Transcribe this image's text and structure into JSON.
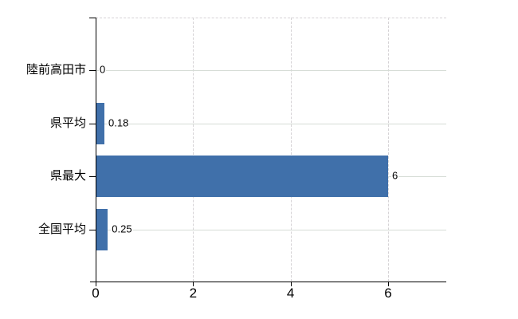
{
  "chart_data": {
    "type": "bar",
    "orientation": "horizontal",
    "title": "",
    "xlabel": "",
    "ylabel": "",
    "categories": [
      "陸前高田市",
      "県平均",
      "県最大",
      "全国平均"
    ],
    "values": [
      0,
      0.18,
      6,
      0.25
    ],
    "value_labels": [
      "0",
      "0.18",
      "6",
      "0.25"
    ],
    "x_ticks": [
      0,
      2,
      4,
      6
    ],
    "x_tick_labels": [
      "0",
      "2",
      "4",
      "6"
    ],
    "xlim": [
      0,
      7.2
    ],
    "grid": true,
    "legend": false,
    "colors": {
      "bar": "#4070aa",
      "grid_dashed": "#d5d2d5",
      "row_line": "#d6dcd6",
      "axis": "#000000",
      "text": "#000000",
      "background": "#ffffff"
    }
  }
}
